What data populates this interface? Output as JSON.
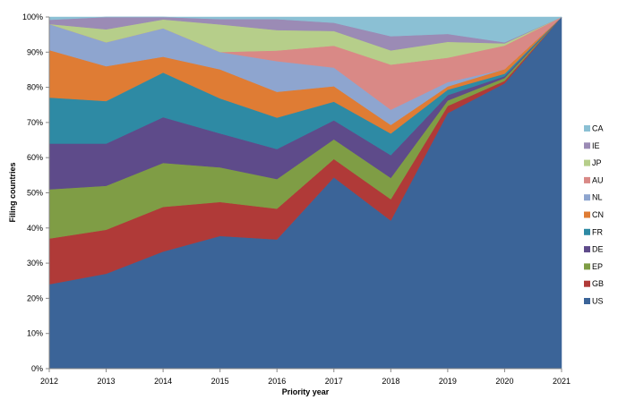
{
  "chart_data": {
    "type": "area",
    "stacked": true,
    "normalized": true,
    "xlabel": "Priority year",
    "ylabel": "Filing countries",
    "x": [
      "2012",
      "2013",
      "2014",
      "2015",
      "2016",
      "2017",
      "2018",
      "2019",
      "2020",
      "2021"
    ],
    "yticks": [
      "0%",
      "10%",
      "20%",
      "30%",
      "40%",
      "50%",
      "60%",
      "70%",
      "80%",
      "90%",
      "100%"
    ],
    "ylim": [
      0,
      100
    ],
    "grid": false,
    "legend_position": "right",
    "series": [
      {
        "name": "US",
        "color": "#3B6498",
        "values": [
          24,
          27,
          33.3,
          37.5,
          36.6,
          53.3,
          41.7,
          71,
          80,
          100
        ]
      },
      {
        "name": "GB",
        "color": "#B03A38",
        "values": [
          13,
          12.5,
          12.7,
          9.6,
          8.7,
          5.1,
          6,
          2,
          0.7,
          0
        ]
      },
      {
        "name": "EP",
        "color": "#7F9D45",
        "values": [
          14,
          12.5,
          12.5,
          9.8,
          8.4,
          5.5,
          6,
          1.5,
          0.8,
          0
        ]
      },
      {
        "name": "DE",
        "color": "#5E4B8A",
        "values": [
          13,
          12,
          13,
          9.6,
          8.5,
          5.3,
          6.4,
          1.5,
          0.5,
          0
        ]
      },
      {
        "name": "FR",
        "color": "#2E8AA4",
        "values": [
          13.1,
          12.1,
          12.7,
          9.9,
          8.9,
          5.2,
          6.1,
          1.5,
          0.7,
          0
        ]
      },
      {
        "name": "CN",
        "color": "#DF7C34",
        "values": [
          13.5,
          9.9,
          4.5,
          8.2,
          7.3,
          4.3,
          2.4,
          0.9,
          1.3,
          0
        ]
      },
      {
        "name": "NL",
        "color": "#8EA5CF",
        "values": [
          7.4,
          6.8,
          8.1,
          4.9,
          8.7,
          5.2,
          4.3,
          1.2,
          0,
          0
        ]
      },
      {
        "name": "AU",
        "color": "#D98986",
        "values": [
          0,
          0,
          0,
          0,
          3,
          6.1,
          12.7,
          6.8,
          6.6,
          0
        ]
      },
      {
        "name": "JP",
        "color": "#B6CE8A",
        "values": [
          0,
          3.7,
          2.5,
          7.8,
          5.8,
          4.1,
          4,
          4.4,
          0.6,
          0
        ]
      },
      {
        "name": "IE",
        "color": "#9B8BB5",
        "values": [
          1.2,
          3.5,
          0.7,
          1.5,
          3.1,
          2.3,
          4,
          2.2,
          0.3,
          0
        ]
      },
      {
        "name": "CA",
        "color": "#8BC0D4",
        "values": [
          0.8,
          0,
          0,
          0.6,
          0.6,
          1.6,
          5.4,
          4.7,
          7.1,
          0
        ]
      }
    ]
  }
}
